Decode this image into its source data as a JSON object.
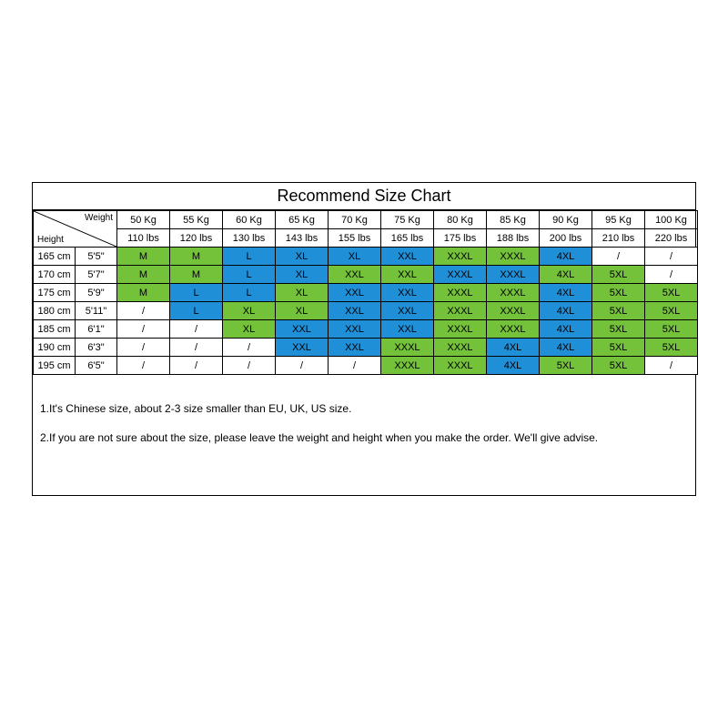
{
  "title": "Recommend Size Chart",
  "corner": {
    "weight_label": "Weight",
    "height_label": "Height"
  },
  "weights_kg": [
    "50 Kg",
    "55 Kg",
    "60 Kg",
    "65 Kg",
    "70 Kg",
    "75 Kg",
    "80 Kg",
    "85 Kg",
    "90 Kg",
    "95 Kg",
    "100 Kg"
  ],
  "weights_lbs": [
    "110 lbs",
    "120 lbs",
    "130 lbs",
    "143 lbs",
    "155 lbs",
    "165 lbs",
    "175 lbs",
    "188 lbs",
    "200 lbs",
    "210 lbs",
    "220 lbs"
  ],
  "heights": [
    {
      "cm": "165 cm",
      "ft": "5'5\""
    },
    {
      "cm": "170 cm",
      "ft": "5'7\""
    },
    {
      "cm": "175 cm",
      "ft": "5'9\""
    },
    {
      "cm": "180 cm",
      "ft": "5'11\""
    },
    {
      "cm": "185 cm",
      "ft": "6'1\""
    },
    {
      "cm": "190 cm",
      "ft": "6'3\""
    },
    {
      "cm": "195 cm",
      "ft": "6'5\""
    }
  ],
  "palette": {
    "green": "#73c23a",
    "blue": "#1f8fd8",
    "none": "#ffffff"
  },
  "grid": [
    [
      {
        "t": "M",
        "c": "green"
      },
      {
        "t": "M",
        "c": "green"
      },
      {
        "t": "L",
        "c": "blue"
      },
      {
        "t": "XL",
        "c": "blue"
      },
      {
        "t": "XL",
        "c": "blue"
      },
      {
        "t": "XXL",
        "c": "blue"
      },
      {
        "t": "XXXL",
        "c": "green"
      },
      {
        "t": "XXXL",
        "c": "green"
      },
      {
        "t": "4XL",
        "c": "blue"
      },
      {
        "t": "/",
        "c": "none"
      },
      {
        "t": "/",
        "c": "none"
      }
    ],
    [
      {
        "t": "M",
        "c": "green"
      },
      {
        "t": "M",
        "c": "green"
      },
      {
        "t": "L",
        "c": "blue"
      },
      {
        "t": "XL",
        "c": "blue"
      },
      {
        "t": "XXL",
        "c": "green"
      },
      {
        "t": "XXL",
        "c": "green"
      },
      {
        "t": "XXXL",
        "c": "blue"
      },
      {
        "t": "XXXL",
        "c": "blue"
      },
      {
        "t": "4XL",
        "c": "green"
      },
      {
        "t": "5XL",
        "c": "green"
      },
      {
        "t": "/",
        "c": "none"
      }
    ],
    [
      {
        "t": "M",
        "c": "green"
      },
      {
        "t": "L",
        "c": "blue"
      },
      {
        "t": "L",
        "c": "blue"
      },
      {
        "t": "XL",
        "c": "green"
      },
      {
        "t": "XXL",
        "c": "blue"
      },
      {
        "t": "XXL",
        "c": "blue"
      },
      {
        "t": "XXXL",
        "c": "green"
      },
      {
        "t": "XXXL",
        "c": "green"
      },
      {
        "t": "4XL",
        "c": "blue"
      },
      {
        "t": "5XL",
        "c": "green"
      },
      {
        "t": "5XL",
        "c": "green"
      }
    ],
    [
      {
        "t": "/",
        "c": "none"
      },
      {
        "t": "L",
        "c": "blue"
      },
      {
        "t": "XL",
        "c": "green"
      },
      {
        "t": "XL",
        "c": "green"
      },
      {
        "t": "XXL",
        "c": "blue"
      },
      {
        "t": "XXL",
        "c": "blue"
      },
      {
        "t": "XXXL",
        "c": "green"
      },
      {
        "t": "XXXL",
        "c": "green"
      },
      {
        "t": "4XL",
        "c": "blue"
      },
      {
        "t": "5XL",
        "c": "green"
      },
      {
        "t": "5XL",
        "c": "green"
      }
    ],
    [
      {
        "t": "/",
        "c": "none"
      },
      {
        "t": "/",
        "c": "none"
      },
      {
        "t": "XL",
        "c": "green"
      },
      {
        "t": "XXL",
        "c": "blue"
      },
      {
        "t": "XXL",
        "c": "blue"
      },
      {
        "t": "XXL",
        "c": "blue"
      },
      {
        "t": "XXXL",
        "c": "green"
      },
      {
        "t": "XXXL",
        "c": "green"
      },
      {
        "t": "4XL",
        "c": "blue"
      },
      {
        "t": "5XL",
        "c": "green"
      },
      {
        "t": "5XL",
        "c": "green"
      }
    ],
    [
      {
        "t": "/",
        "c": "none"
      },
      {
        "t": "/",
        "c": "none"
      },
      {
        "t": "/",
        "c": "none"
      },
      {
        "t": "XXL",
        "c": "blue"
      },
      {
        "t": "XXL",
        "c": "blue"
      },
      {
        "t": "XXXL",
        "c": "green"
      },
      {
        "t": "XXXL",
        "c": "green"
      },
      {
        "t": "4XL",
        "c": "blue"
      },
      {
        "t": "4XL",
        "c": "blue"
      },
      {
        "t": "5XL",
        "c": "green"
      },
      {
        "t": "5XL",
        "c": "green"
      }
    ],
    [
      {
        "t": "/",
        "c": "none"
      },
      {
        "t": "/",
        "c": "none"
      },
      {
        "t": "/",
        "c": "none"
      },
      {
        "t": "/",
        "c": "none"
      },
      {
        "t": "/",
        "c": "none"
      },
      {
        "t": "XXXL",
        "c": "green"
      },
      {
        "t": "XXXL",
        "c": "green"
      },
      {
        "t": "4XL",
        "c": "blue"
      },
      {
        "t": "5XL",
        "c": "green"
      },
      {
        "t": "5XL",
        "c": "green"
      },
      {
        "t": "/",
        "c": "none"
      }
    ]
  ],
  "notes": [
    "1.It's Chinese size, about 2-3 size smaller than EU, UK, US size.",
    "2.If you are not sure about the size, please leave the weight and height when you make the order. We'll give advise."
  ]
}
